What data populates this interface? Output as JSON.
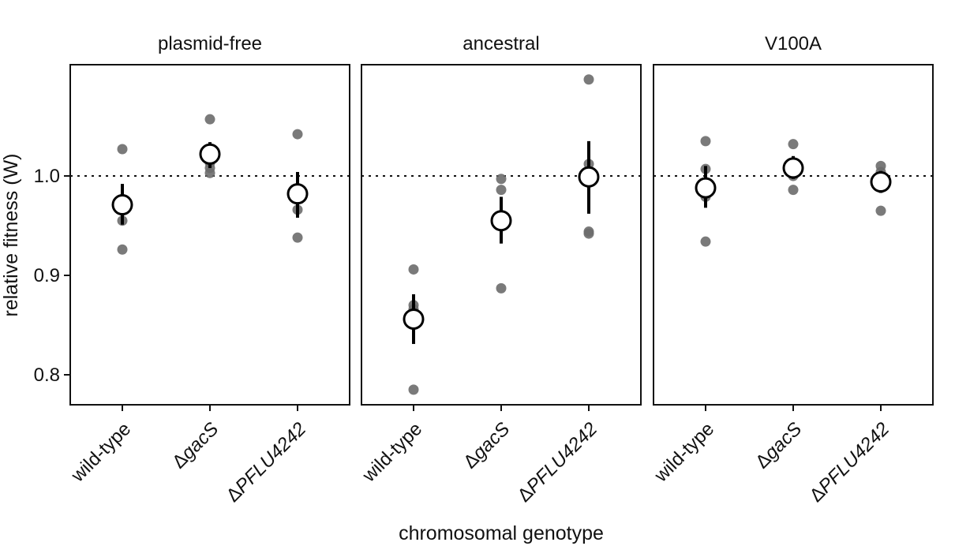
{
  "chart_data": {
    "type": "scatter",
    "xlabel": "chromosomal genotype",
    "ylabel": "relative fitness (W)",
    "ylim": [
      0.77,
      1.115
    ],
    "yticks": [
      0.8,
      0.9,
      1.0
    ],
    "ytick_labels": [
      "0.8",
      "0.9",
      "1.0"
    ],
    "reference_line": 1.0,
    "categories": [
      {
        "prefix": "",
        "text": "wild-type",
        "italic": false
      },
      {
        "prefix": "Δ",
        "text": "gacS",
        "italic": true
      },
      {
        "prefix": "Δ",
        "text": "PFLU4242",
        "italic": true
      }
    ],
    "facets": [
      {
        "title": "plasmid-free",
        "groups": [
          {
            "points": [
              1.027,
              0.975,
              0.955,
              0.926
            ],
            "mean": 0.971,
            "lower": 0.951,
            "upper": 0.992
          },
          {
            "points": [
              1.057,
              1.013,
              1.008,
              1.003
            ],
            "mean": 1.022,
            "lower": 1.008,
            "upper": 1.034
          },
          {
            "points": [
              1.042,
              0.983,
              0.966,
              0.938
            ],
            "mean": 0.982,
            "lower": 0.958,
            "upper": 1.004
          }
        ]
      },
      {
        "title": "ancestral",
        "groups": [
          {
            "points": [
              0.906,
              0.87,
              0.866,
              0.785
            ],
            "mean": 0.856,
            "lower": 0.831,
            "upper": 0.881
          },
          {
            "points": [
              0.997,
              0.986,
              0.952,
              0.887
            ],
            "mean": 0.955,
            "lower": 0.932,
            "upper": 0.979
          },
          {
            "points": [
              1.097,
              1.012,
              0.944,
              0.942
            ],
            "mean": 0.999,
            "lower": 0.962,
            "upper": 1.035
          }
        ]
      },
      {
        "title": "V100A",
        "groups": [
          {
            "points": [
              1.035,
              1.007,
              0.979,
              0.934
            ],
            "mean": 0.988,
            "lower": 0.968,
            "upper": 1.01
          },
          {
            "points": [
              1.032,
              1.011,
              1.0,
              0.986
            ],
            "mean": 1.008,
            "lower": 0.997,
            "upper": 1.02
          },
          {
            "points": [
              1.01,
              1.004,
              0.988,
              0.965
            ],
            "mean": 0.994,
            "lower": 0.983,
            "upper": 1.005
          }
        ]
      }
    ]
  }
}
